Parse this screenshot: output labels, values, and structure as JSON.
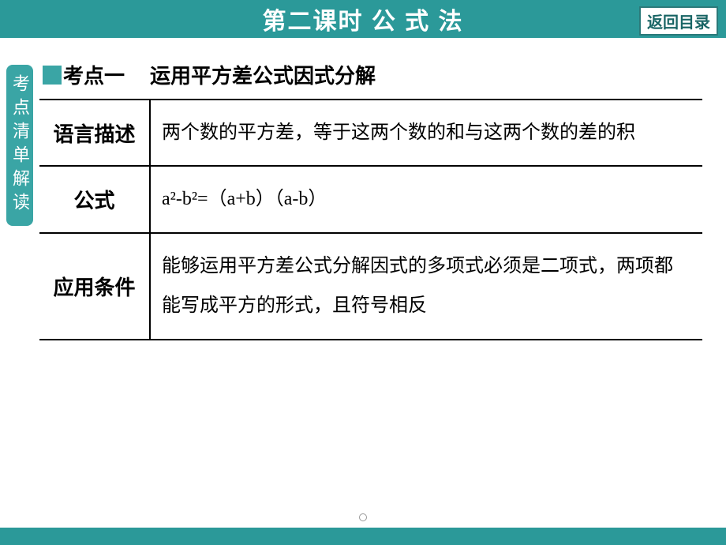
{
  "header": {
    "title": "第二课时 公 式 法",
    "return_label": "返回目录"
  },
  "sidebar": {
    "label": "考点清单解读"
  },
  "topic": {
    "marker_label": "考点一",
    "title": "运用平方差公式因式分解"
  },
  "rows": [
    {
      "label": "语言描述",
      "content": "两个数的平方差，等于这两个数的和与这两个数的差的积"
    },
    {
      "label": "公式",
      "content": "a²-b²=（a+b）（a-b）"
    },
    {
      "label": "应用条件",
      "content": "能够运用平方差公式分解因式的多项式必须是二项式，两项都能写成平方的形式，且符号相反"
    }
  ],
  "colors": {
    "header_bg": "#2b9999",
    "sidebar_bg": "#3aa5a5",
    "marker_bg": "#3aa5a5",
    "text": "#000000",
    "header_text": "#ffffff",
    "border": "#000000"
  }
}
